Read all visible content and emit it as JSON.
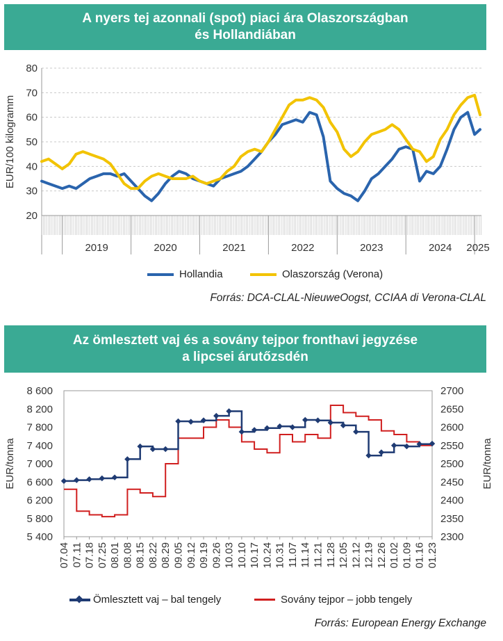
{
  "charts": {
    "chart1": {
      "title_line1": "A nyers tej azonnali (spot) piaci ára Olaszországban",
      "title_line2": "és Hollandiában",
      "source": "Forrás: DCA-CLAL-NieuweOogst, CCIAA di Verona-CLAL"
    },
    "chart2": {
      "title_line1": "Az ömlesztett vaj és a sovány tejpor fronthavi jegyzése",
      "title_line2": "a lipcsei árutőzsdén",
      "source": "Forrás: European Energy Exchange"
    }
  },
  "chart_data": [
    {
      "type": "line",
      "title": "A nyers tej azonnali (spot) piaci ára Olaszországban és Hollandiában",
      "ylabel": "EUR/100 kilogramm",
      "ylim": [
        20,
        80
      ],
      "yticks": [
        20,
        30,
        40,
        50,
        60,
        70,
        80
      ],
      "xlim": [
        2018.7,
        2025.1
      ],
      "xtick_labels": [
        "2019",
        "2020",
        "2021",
        "2022",
        "2023",
        "2024",
        "2025"
      ],
      "xtick_positions": [
        2019.5,
        2020.5,
        2021.5,
        2022.5,
        2023.5,
        2024.5,
        2025.05
      ],
      "grid": "horizontal dashed",
      "legend": "bottom",
      "series": [
        {
          "name": "Hollandia",
          "color": "#2a64ad",
          "x": [
            2018.7,
            2018.8,
            2018.9,
            2019.0,
            2019.1,
            2019.2,
            2019.3,
            2019.4,
            2019.5,
            2019.6,
            2019.7,
            2019.8,
            2019.9,
            2020.0,
            2020.1,
            2020.2,
            2020.3,
            2020.4,
            2020.5,
            2020.6,
            2020.7,
            2020.8,
            2020.9,
            2021.0,
            2021.1,
            2021.2,
            2021.3,
            2021.4,
            2021.5,
            2021.6,
            2021.7,
            2021.8,
            2021.9,
            2022.0,
            2022.1,
            2022.2,
            2022.3,
            2022.4,
            2022.5,
            2022.6,
            2022.7,
            2022.8,
            2022.9,
            2023.0,
            2023.1,
            2023.2,
            2023.3,
            2023.4,
            2023.5,
            2023.6,
            2023.7,
            2023.8,
            2023.9,
            2024.0,
            2024.1,
            2024.2,
            2024.3,
            2024.4,
            2024.5,
            2024.6,
            2024.7,
            2024.8,
            2024.9,
            2025.0,
            2025.08
          ],
          "values": [
            34,
            33,
            32,
            31,
            32,
            31,
            33,
            35,
            36,
            37,
            37,
            36,
            37,
            34,
            31,
            28,
            26,
            29,
            33,
            36,
            38,
            37,
            35,
            34,
            33,
            32,
            35,
            36,
            37,
            38,
            40,
            43,
            46,
            50,
            53,
            57,
            58,
            59,
            58,
            62,
            61,
            52,
            34,
            31,
            29,
            28,
            26,
            30,
            35,
            37,
            40,
            43,
            47,
            48,
            47,
            34,
            38,
            37,
            40,
            47,
            55,
            60,
            62,
            53,
            55
          ]
        },
        {
          "name": "Olaszország (Verona)",
          "color": "#f2c300",
          "x": [
            2018.7,
            2018.8,
            2018.9,
            2019.0,
            2019.1,
            2019.2,
            2019.3,
            2019.4,
            2019.5,
            2019.6,
            2019.7,
            2019.8,
            2019.9,
            2020.0,
            2020.1,
            2020.2,
            2020.3,
            2020.4,
            2020.5,
            2020.6,
            2020.7,
            2020.8,
            2020.9,
            2021.0,
            2021.1,
            2021.2,
            2021.3,
            2021.4,
            2021.5,
            2021.6,
            2021.7,
            2021.8,
            2021.9,
            2022.0,
            2022.1,
            2022.2,
            2022.3,
            2022.4,
            2022.5,
            2022.6,
            2022.7,
            2022.8,
            2022.9,
            2023.0,
            2023.1,
            2023.2,
            2023.3,
            2023.4,
            2023.5,
            2023.6,
            2023.7,
            2023.8,
            2023.9,
            2024.0,
            2024.1,
            2024.2,
            2024.3,
            2024.4,
            2024.5,
            2024.6,
            2024.7,
            2024.8,
            2024.9,
            2025.0,
            2025.08
          ],
          "values": [
            42,
            43,
            41,
            39,
            41,
            45,
            46,
            45,
            44,
            43,
            41,
            37,
            33,
            31,
            31,
            34,
            36,
            37,
            36,
            35,
            35,
            35,
            36,
            34,
            33,
            34,
            35,
            38,
            40,
            44,
            46,
            47,
            46,
            50,
            55,
            60,
            65,
            67,
            67,
            68,
            67,
            64,
            58,
            54,
            47,
            44,
            46,
            50,
            53,
            54,
            55,
            57,
            55,
            51,
            47,
            46,
            42,
            44,
            51,
            55,
            61,
            65,
            68,
            69,
            61
          ]
        }
      ]
    },
    {
      "type": "line",
      "title": "Az ömlesztett vaj és a sovány tejpor fronthavi jegyzése a lipcsei árutőzsdén",
      "ylabel": "EUR/tonna",
      "y2label": "EUR/tonna",
      "ylim": [
        5400,
        8600
      ],
      "yticks": [
        5400,
        5800,
        6200,
        6600,
        7000,
        7400,
        7800,
        8200,
        8600
      ],
      "ytick_labels": [
        "5 400",
        "5 800",
        "6 200",
        "6 600",
        "7 000",
        "7 400",
        "7 800",
        "8 200",
        "8 600"
      ],
      "y2lim": [
        2300,
        2700
      ],
      "y2ticks": [
        2300,
        2350,
        2400,
        2450,
        2500,
        2550,
        2600,
        2650,
        2700
      ],
      "xlim": [
        0,
        203
      ],
      "x_categories": [
        "07.04",
        "07.11",
        "07.18",
        "07.25",
        "08.01",
        "08.08",
        "08.15",
        "08.22",
        "08.29",
        "09.05",
        "09.12",
        "09.19",
        "09.26",
        "10.03",
        "10.10",
        "10.17",
        "10.24",
        "10.31",
        "11.07",
        "11.14",
        "11.21",
        "11.28",
        "12.05",
        "12.12",
        "12.19",
        "12.26",
        "01.02",
        "01.09",
        "01.16",
        "01.23"
      ],
      "grid": "none",
      "legend": "bottom",
      "series": [
        {
          "name": "Ömlesztett vaj – bal tengely",
          "axis": "left",
          "color": "#1f3b73",
          "marker": "diamond",
          "x": [
            0,
            7,
            14,
            21,
            28,
            35,
            42,
            49,
            56,
            63,
            70,
            77,
            84,
            91,
            98,
            105,
            112,
            119,
            126,
            133,
            140,
            147,
            154,
            161,
            168,
            175,
            182,
            189,
            196,
            203
          ],
          "values": [
            6620,
            6640,
            6660,
            6680,
            6700,
            7100,
            7380,
            7320,
            7320,
            7930,
            7920,
            7950,
            8050,
            8150,
            7700,
            7740,
            7780,
            7820,
            7800,
            7960,
            7950,
            7900,
            7840,
            7700,
            7180,
            7250,
            7400,
            7380,
            7430,
            7440
          ]
        },
        {
          "name": "Sovány tejpor – jobb tengely",
          "axis": "right",
          "color": "#d01f1f",
          "x": [
            0,
            7,
            14,
            21,
            28,
            35,
            42,
            49,
            56,
            63,
            70,
            77,
            84,
            91,
            98,
            105,
            112,
            119,
            126,
            133,
            140,
            147,
            154,
            161,
            168,
            175,
            182,
            189,
            196,
            203
          ],
          "values": [
            2430,
            2370,
            2360,
            2355,
            2360,
            2430,
            2420,
            2410,
            2500,
            2570,
            2570,
            2600,
            2620,
            2600,
            2560,
            2540,
            2530,
            2580,
            2560,
            2580,
            2570,
            2660,
            2640,
            2630,
            2620,
            2590,
            2580,
            2560,
            2550,
            2550
          ]
        }
      ]
    }
  ]
}
